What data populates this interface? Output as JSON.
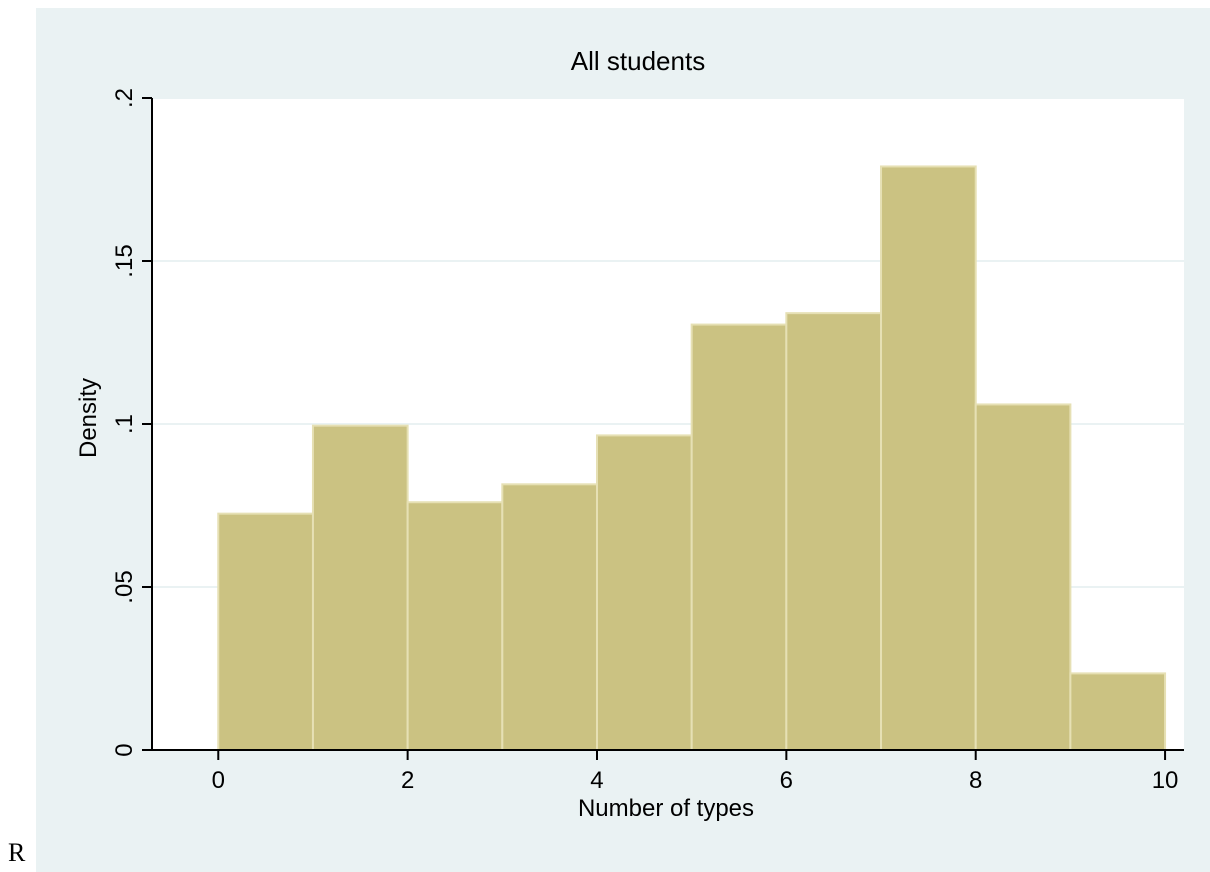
{
  "page": {
    "stray_text": "R"
  },
  "colors": {
    "panel_bg": "#eaf2f3",
    "plot_bg": "#ffffff",
    "bar_fill": "#cbc282",
    "bar_stroke": "#e6e0b4",
    "grid": "#eaf2f3",
    "axis": "#000000"
  },
  "chart_data": {
    "type": "bar",
    "title": "All students",
    "xlabel": "Number of types",
    "ylabel": "Density",
    "xlim": [
      -0.7,
      10.2
    ],
    "ylim": [
      0,
      0.2
    ],
    "x_ticks": [
      0,
      2,
      4,
      6,
      8,
      10
    ],
    "x_tick_labels": [
      "0",
      "2",
      "4",
      "6",
      "8",
      "10"
    ],
    "y_ticks": [
      0,
      0.05,
      0.1,
      0.15,
      0.2
    ],
    "y_tick_labels": [
      "0",
      ".05",
      ".1",
      ".15",
      ".2"
    ],
    "grid": true,
    "bins": [
      {
        "start": 0,
        "end": 1,
        "value": 0.0725
      },
      {
        "start": 1,
        "end": 2,
        "value": 0.0995
      },
      {
        "start": 2,
        "end": 3,
        "value": 0.076
      },
      {
        "start": 3,
        "end": 4,
        "value": 0.0815
      },
      {
        "start": 4,
        "end": 5,
        "value": 0.0965
      },
      {
        "start": 5,
        "end": 6,
        "value": 0.1305
      },
      {
        "start": 6,
        "end": 7,
        "value": 0.134
      },
      {
        "start": 7,
        "end": 8,
        "value": 0.179
      },
      {
        "start": 8,
        "end": 9,
        "value": 0.106
      },
      {
        "start": 9,
        "end": 10,
        "value": 0.0235
      }
    ]
  }
}
